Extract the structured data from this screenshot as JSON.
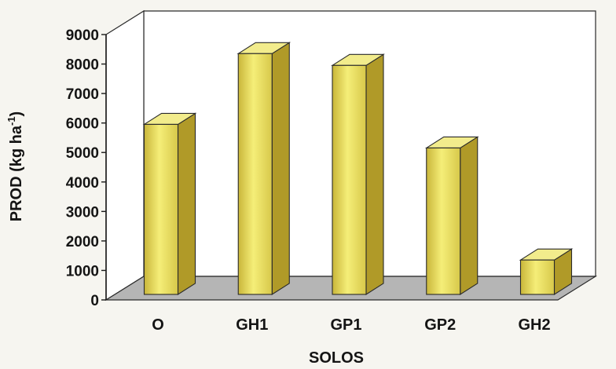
{
  "chart_data": {
    "type": "bar",
    "categories": [
      "O",
      "GH1",
      "GP1",
      "GP2",
      "GH2"
    ],
    "values": [
      5900,
      8300,
      7900,
      5100,
      1300
    ],
    "title": "",
    "xlabel": "SOLOS",
    "ylabel_main": "PROD (kg ha",
    "ylabel_sup": "-1",
    "ylabel_close": ")",
    "ylim": [
      0,
      9000
    ],
    "yticks": [
      "0",
      "1000",
      "2000",
      "3000",
      "4000",
      "5000",
      "6000",
      "7000",
      "8000",
      "9000"
    ],
    "grid": false,
    "legend": "none",
    "style": "3d",
    "colors": {
      "bar_front": "#ece35a",
      "bar_side": "#b09a28",
      "bar_top": "#f2ec8c",
      "floor": "#b5b5b5",
      "walls": "#ffffff"
    }
  }
}
